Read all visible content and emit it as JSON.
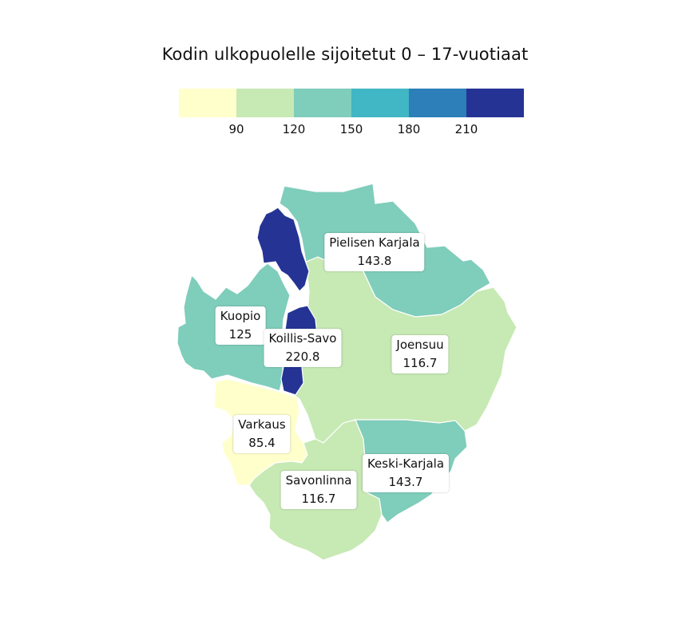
{
  "title": "Kodin ulkopuolelle sijoitetut 0 – 17-vuotiaat",
  "legend": {
    "colors": [
      "#ffffcc",
      "#c7e9b4",
      "#7fcdbb",
      "#41b6c4",
      "#2c7fb8",
      "#253494"
    ],
    "ticks": [
      "90",
      "120",
      "150",
      "180",
      "210"
    ]
  },
  "regions": [
    {
      "name": "Pielisen Karjala",
      "value": "143.8",
      "color": "#7fcdbb"
    },
    {
      "name": "Joensuu",
      "value": "116.7",
      "color": "#c7e9b4"
    },
    {
      "name": "Kuopio",
      "value": "125",
      "color": "#7fcdbb"
    },
    {
      "name": "Koillis-Savo",
      "value": "220.8",
      "color": "#253494"
    },
    {
      "name": "Varkaus",
      "value": "85.4",
      "color": "#ffffcc"
    },
    {
      "name": "Savonlinna",
      "value": "116.7",
      "color": "#c7e9b4"
    },
    {
      "name": "Keski-Karjala",
      "value": "143.7",
      "color": "#7fcdbb"
    }
  ]
}
